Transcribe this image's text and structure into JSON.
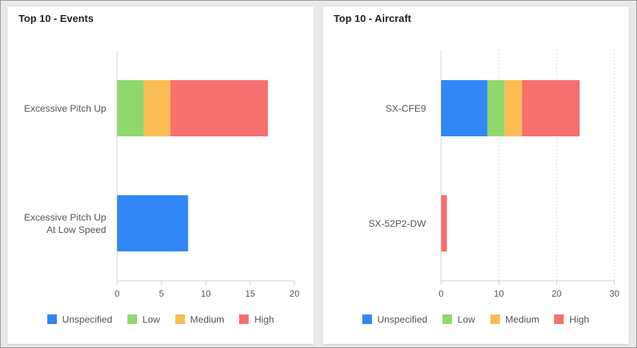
{
  "colors": {
    "Unspecified": "#3087f5",
    "Low": "#90d86c",
    "Medium": "#f9bd54",
    "High": "#f67070"
  },
  "chart_data": [
    {
      "type": "bar",
      "orientation": "horizontal",
      "stacked": true,
      "title": "Top 10 - Events",
      "categories": [
        [
          "Excessive Pitch Up"
        ],
        [
          "Excessive Pitch Up",
          "At Low Speed"
        ]
      ],
      "series": [
        {
          "name": "Unspecified",
          "values": [
            0,
            8
          ]
        },
        {
          "name": "Low",
          "values": [
            3,
            0
          ]
        },
        {
          "name": "Medium",
          "values": [
            3,
            0
          ]
        },
        {
          "name": "High",
          "values": [
            11,
            0
          ]
        }
      ],
      "xlim": [
        0,
        20
      ],
      "xticks": [
        0,
        5,
        10,
        15,
        20
      ],
      "grid": false,
      "legend": "bottom"
    },
    {
      "type": "bar",
      "orientation": "horizontal",
      "stacked": true,
      "title": "Top 10 - Aircraft",
      "categories": [
        [
          "SX-CFE9"
        ],
        [
          "SX-52P2-DW"
        ]
      ],
      "series": [
        {
          "name": "Unspecified",
          "values": [
            8,
            0
          ]
        },
        {
          "name": "Low",
          "values": [
            3,
            0
          ]
        },
        {
          "name": "Medium",
          "values": [
            3,
            0
          ]
        },
        {
          "name": "High",
          "values": [
            10,
            1
          ]
        }
      ],
      "xlim": [
        0,
        30
      ],
      "xticks": [
        0,
        10,
        20,
        30
      ],
      "grid": true,
      "legend": "bottom"
    }
  ]
}
